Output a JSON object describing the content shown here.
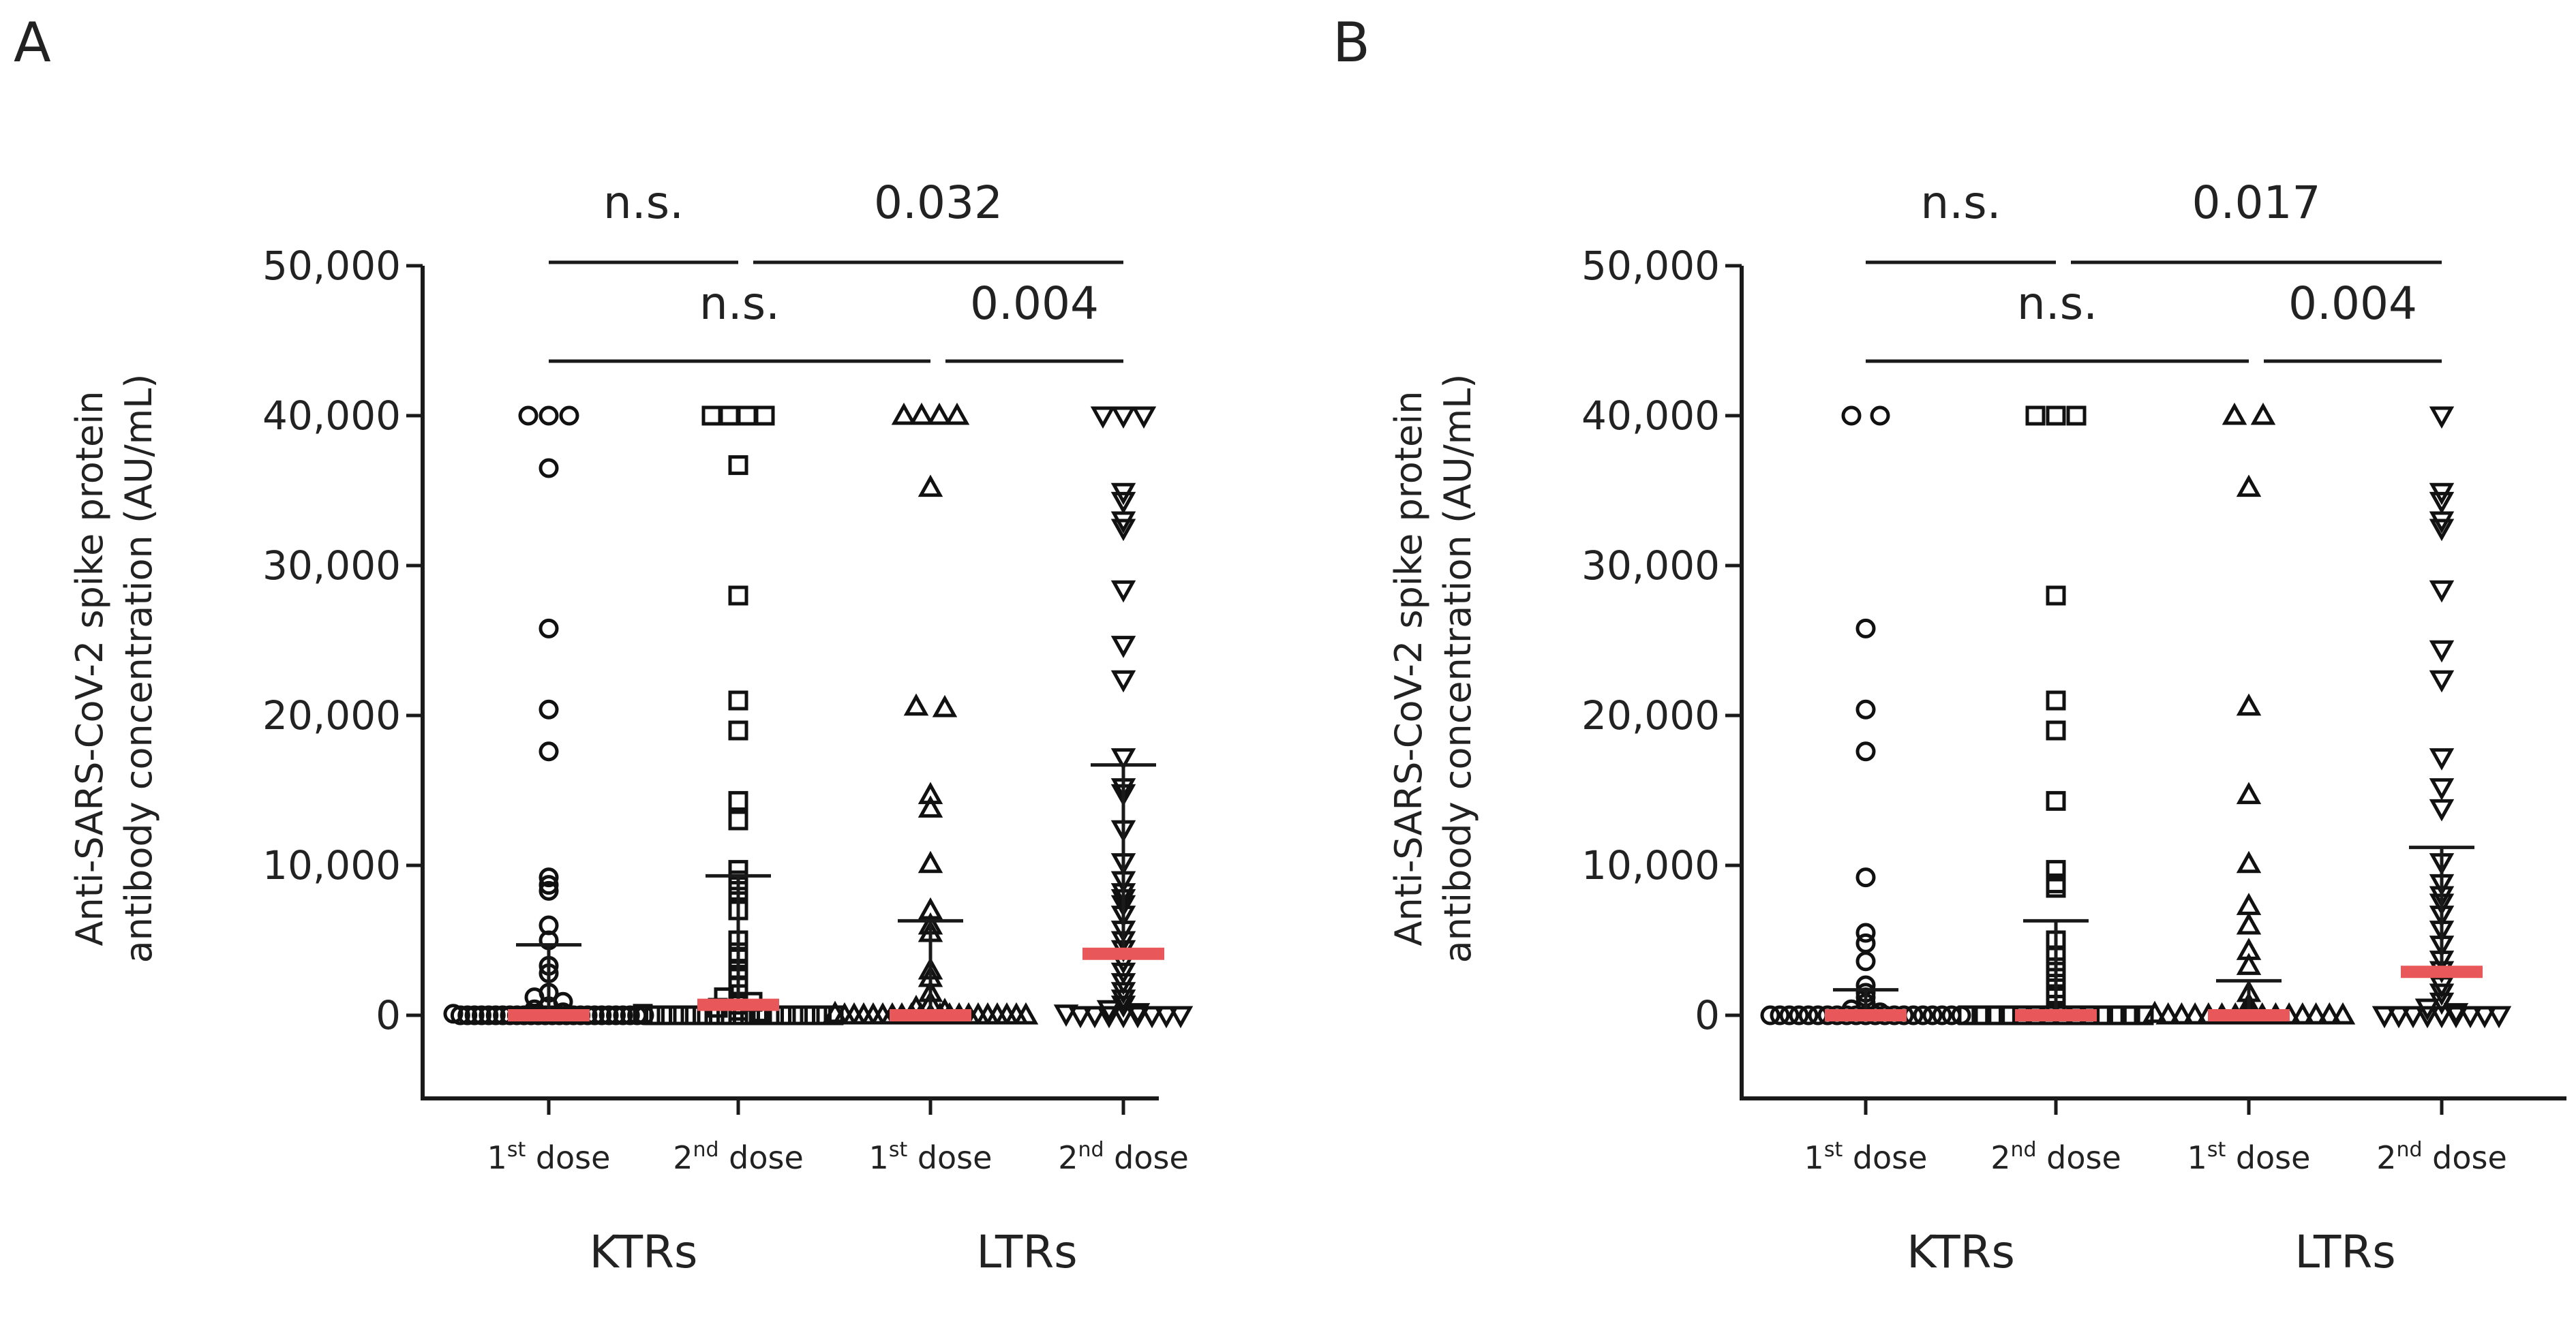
{
  "chart_data": [
    {
      "panel": "A",
      "type": "scatter",
      "ylabel_lines": [
        "Anti-SARS-CoV-2 spike protein",
        "antibody concentration (AU/mL)"
      ],
      "ylim": [
        -5500,
        50000
      ],
      "yticks": [
        0,
        10000,
        20000,
        30000,
        40000,
        50000
      ],
      "ytick_labels": [
        "0",
        "10,000",
        "20,000",
        "30,000",
        "40,000",
        "50,000"
      ],
      "categories": [
        {
          "base": "1",
          "sup": "st",
          "rest": " dose",
          "group": "KTRs",
          "marker": "circle"
        },
        {
          "base": "2",
          "sup": "nd",
          "rest": " dose",
          "group": "KTRs",
          "marker": "square"
        },
        {
          "base": "1",
          "sup": "st",
          "rest": " dose",
          "group": "LTRs",
          "marker": "triangle-up"
        },
        {
          "base": "2",
          "sup": "nd",
          "rest": " dose",
          "group": "LTRs",
          "marker": "triangle-down"
        }
      ],
      "groups": [
        "KTRs",
        "LTRs"
      ],
      "medians": [
        0,
        700,
        0,
        4100
      ],
      "upper_whiskers": [
        4700,
        9300,
        6300,
        16700
      ],
      "series": [
        {
          "name": "KTRs 1st dose",
          "values": [
            40000,
            40000,
            40000,
            36500,
            25800,
            20400,
            17600,
            9200,
            8700,
            8300,
            6000,
            5000,
            3300,
            2800,
            1500,
            1200,
            900,
            600,
            400,
            200,
            100,
            0,
            0,
            0,
            0,
            0,
            0,
            0,
            0,
            0,
            0,
            0,
            0,
            0,
            0,
            0,
            0,
            0,
            0,
            0,
            0,
            0,
            0,
            0,
            0,
            0,
            0,
            0
          ]
        },
        {
          "name": "KTRs 2nd dose",
          "values": [
            40000,
            40000,
            40000,
            40000,
            36700,
            28000,
            21000,
            19000,
            14300,
            13000,
            9700,
            9000,
            8700,
            8300,
            7000,
            5000,
            4200,
            3800,
            3000,
            2500,
            2000,
            1200,
            900,
            700,
            500,
            300,
            200,
            100,
            0,
            0,
            0,
            0,
            0,
            0,
            0,
            0,
            0,
            0,
            0,
            0,
            0,
            0,
            0,
            0
          ]
        },
        {
          "name": "LTRs 1st dose",
          "values": [
            40000,
            40000,
            40000,
            40000,
            35200,
            20600,
            20500,
            14700,
            13800,
            10100,
            7000,
            6000,
            5500,
            3000,
            2500,
            1500,
            800,
            500,
            300,
            100,
            0,
            0,
            0,
            0,
            0,
            0,
            0,
            0,
            0,
            0,
            0,
            0,
            0,
            0,
            0,
            0,
            0,
            0,
            0,
            0
          ]
        },
        {
          "name": "LTRs 2nd dose",
          "values": [
            40000,
            40000,
            40000,
            34900,
            34300,
            33000,
            32500,
            28400,
            24700,
            22400,
            17200,
            15200,
            14800,
            12400,
            10200,
            9000,
            8200,
            7800,
            7400,
            6700,
            5700,
            5000,
            4400,
            3600,
            2900,
            2200,
            1600,
            1100,
            700,
            400,
            200,
            100,
            0,
            0,
            0,
            0,
            0,
            0,
            0,
            0
          ]
        }
      ],
      "comparisons": [
        {
          "label": "n.s.",
          "row": "top",
          "from": 0,
          "to": 1
        },
        {
          "label": "0.032",
          "row": "top",
          "from": 1,
          "to": 3
        },
        {
          "label": "n.s.",
          "row": "bottom",
          "from": 0,
          "to": 2
        },
        {
          "label": "0.004",
          "row": "bottom",
          "from": 2,
          "to": 3
        }
      ]
    },
    {
      "panel": "B",
      "type": "scatter",
      "ylabel_lines": [
        "Anti-SARS-CoV-2 spike protein",
        "antibody concentration (AU/mL)"
      ],
      "ylim": [
        -5500,
        50000
      ],
      "yticks": [
        0,
        10000,
        20000,
        30000,
        40000,
        50000
      ],
      "ytick_labels": [
        "0",
        "10,000",
        "20,000",
        "30,000",
        "40,000",
        "50,000"
      ],
      "categories": [
        {
          "base": "1",
          "sup": "st",
          "rest": " dose",
          "group": "KTRs",
          "marker": "circle"
        },
        {
          "base": "2",
          "sup": "nd",
          "rest": " dose",
          "group": "KTRs",
          "marker": "square"
        },
        {
          "base": "1",
          "sup": "st",
          "rest": " dose",
          "group": "LTRs",
          "marker": "triangle-up"
        },
        {
          "base": "2",
          "sup": "nd",
          "rest": " dose",
          "group": "LTRs",
          "marker": "triangle-down"
        }
      ],
      "groups": [
        "KTRs",
        "LTRs"
      ],
      "medians": [
        0,
        0,
        0,
        2900
      ],
      "upper_whiskers": [
        1700,
        6300,
        2300,
        11200
      ],
      "series": [
        {
          "name": "KTRs 1st dose",
          "values": [
            40000,
            40000,
            25800,
            20400,
            17600,
            9200,
            5500,
            4800,
            3600,
            2000,
            1500,
            1200,
            800,
            400,
            200,
            0,
            0,
            0,
            0,
            0,
            0,
            0,
            0,
            0,
            0,
            0,
            0,
            0,
            0,
            0,
            0,
            0,
            0,
            0,
            0,
            0
          ]
        },
        {
          "name": "KTRs 2nd dose",
          "values": [
            40000,
            40000,
            40000,
            28000,
            21000,
            19000,
            14300,
            9700,
            8800,
            8500,
            5000,
            4000,
            3200,
            2500,
            1800,
            1200,
            700,
            300,
            0,
            0,
            0,
            0,
            0,
            0,
            0,
            0,
            0,
            0,
            0,
            0,
            0,
            0
          ]
        },
        {
          "name": "LTRs 1st dose",
          "values": [
            40000,
            40000,
            35200,
            20600,
            14700,
            10100,
            7300,
            6000,
            4300,
            3300,
            1500,
            700,
            400,
            100,
            0,
            0,
            0,
            0,
            0,
            0,
            0,
            0,
            0,
            0,
            0,
            0,
            0,
            0
          ]
        },
        {
          "name": "LTRs 2nd dose",
          "values": [
            40000,
            34900,
            34300,
            33000,
            32500,
            28400,
            24400,
            22400,
            17200,
            15200,
            13800,
            10200,
            8800,
            8000,
            7500,
            6700,
            5700,
            4700,
            3700,
            3000,
            2000,
            1500,
            900,
            500,
            200,
            0,
            0,
            0,
            0,
            0,
            0,
            0,
            0,
            0
          ]
        }
      ],
      "comparisons": [
        {
          "label": "n.s.",
          "row": "top",
          "from": 0,
          "to": 1
        },
        {
          "label": "0.017",
          "row": "top",
          "from": 1,
          "to": 3
        },
        {
          "label": "n.s.",
          "row": "bottom",
          "from": 0,
          "to": 2
        },
        {
          "label": "0.004",
          "row": "bottom",
          "from": 2,
          "to": 3
        }
      ]
    }
  ],
  "colors": {
    "axis": "#1a1a1a",
    "marker_stroke": "#111111",
    "median": "#e8585a",
    "text": "#222222"
  }
}
